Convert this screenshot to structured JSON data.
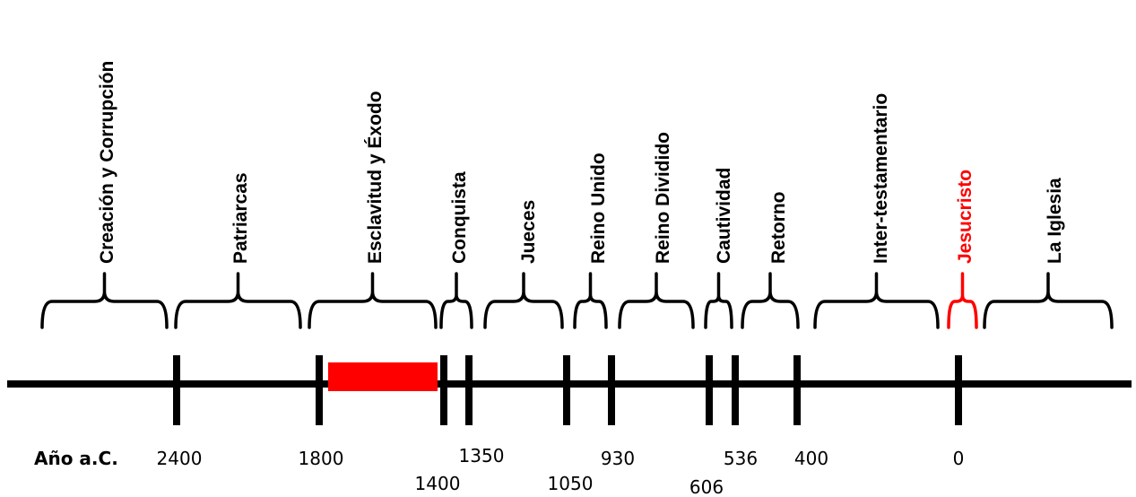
{
  "axis_label": "Año a.C.",
  "colors": {
    "default": "#000000",
    "highlight": "#ff0000",
    "background": "#ffffff"
  },
  "periods": [
    {
      "label": "Creación y Corrupción",
      "highlight": false
    },
    {
      "label": "Patriarcas",
      "highlight": false
    },
    {
      "label": "Esclavitud y Éxodo",
      "highlight": false
    },
    {
      "label": "Conquista",
      "highlight": false
    },
    {
      "label": "Jueces",
      "highlight": false
    },
    {
      "label": "Reino Unido",
      "highlight": false
    },
    {
      "label": "Reino Dividido",
      "highlight": false
    },
    {
      "label": "Cautividad",
      "highlight": false
    },
    {
      "label": "Retorno",
      "highlight": false
    },
    {
      "label": "Inter-testamentario",
      "highlight": false
    },
    {
      "label": "Jesucristo",
      "highlight": true
    },
    {
      "label": "La Iglesia",
      "highlight": false
    }
  ],
  "years": [
    "2400",
    "1800",
    "1400",
    "1350",
    "1050",
    "930",
    "606",
    "536",
    "400",
    "0"
  ]
}
